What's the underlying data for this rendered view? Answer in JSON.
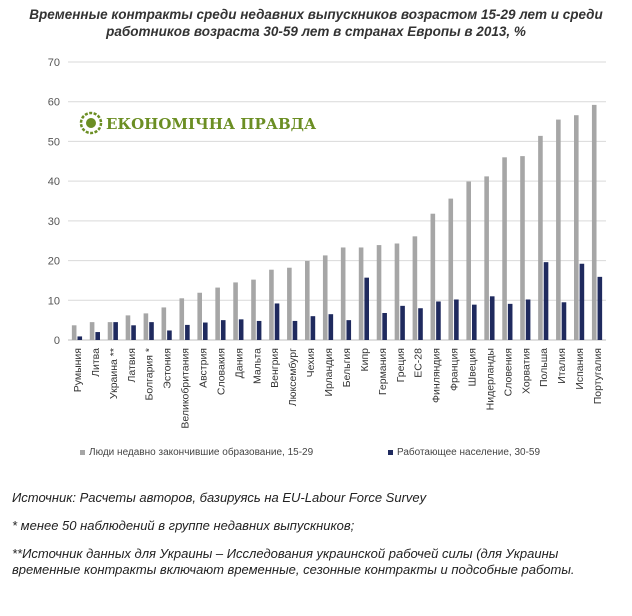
{
  "chart_data": {
    "type": "bar",
    "title": "Временные контракты среди недавних выпускников возрастом 15-29 лет и среди работников возраста 30-59 лет в странах Европы в 2013, %",
    "categories": [
      "Румыния",
      "Литва",
      "Украина **",
      "Латвия",
      "Болгария *",
      "Эстония",
      "Великобритания",
      "Австрия",
      "Словакия",
      "Дания",
      "Мальта",
      "Венгрия",
      "Люксембург",
      "Чехия",
      "Ирландия",
      "Бельгия",
      "Кипр",
      "Германия",
      "Греция",
      "ЕС-28",
      "Финляндия",
      "Франция",
      "Швеция",
      "Нидерланды",
      "Словения",
      "Хорватия",
      "Польша",
      "Италия",
      "Испания",
      "Португалия"
    ],
    "series": [
      {
        "name": "Люди недавно закончившие образование, 15-29",
        "color": "#a6a6a6",
        "values": [
          3.7,
          4.5,
          4.5,
          6.2,
          6.7,
          8.2,
          10.5,
          11.9,
          13.2,
          14.5,
          15.2,
          17.7,
          18.2,
          19.9,
          21.3,
          23.3,
          23.3,
          23.9,
          24.3,
          26.1,
          31.8,
          35.6,
          39.9,
          41.2,
          46.0,
          46.3,
          51.4,
          55.5,
          56.6,
          59.2
        ]
      },
      {
        "name": "Работающее население, 30-59",
        "color": "#1f2a5e",
        "values": [
          0.9,
          2.0,
          4.5,
          3.7,
          4.5,
          2.4,
          3.8,
          4.4,
          5.0,
          5.2,
          4.8,
          9.2,
          4.8,
          6.0,
          6.5,
          5.0,
          15.7,
          6.8,
          8.6,
          8.0,
          9.7,
          10.2,
          8.9,
          11.0,
          9.1,
          10.2,
          19.6,
          9.5,
          19.2,
          15.9
        ]
      }
    ],
    "ylim": [
      0,
      70
    ],
    "yticks": [
      0,
      10,
      20,
      30,
      40,
      50,
      60,
      70
    ],
    "grid": true,
    "legend": "bottom"
  },
  "logo": {
    "text": "ЕКОНОМІЧНА ПРАВДА",
    "color": "#6b8e23"
  },
  "notes": {
    "source": "Источник: Расчеты авторов, базируясь на EU-Labour Force Survey",
    "note1": "* менее 50 наблюдений в группе недавних выпускников;",
    "note2": "**Источник данных для Украины – Исследования украинской рабочей силы (для Украины временные контракты включают временные, сезонные контракты и подсобные работы."
  }
}
